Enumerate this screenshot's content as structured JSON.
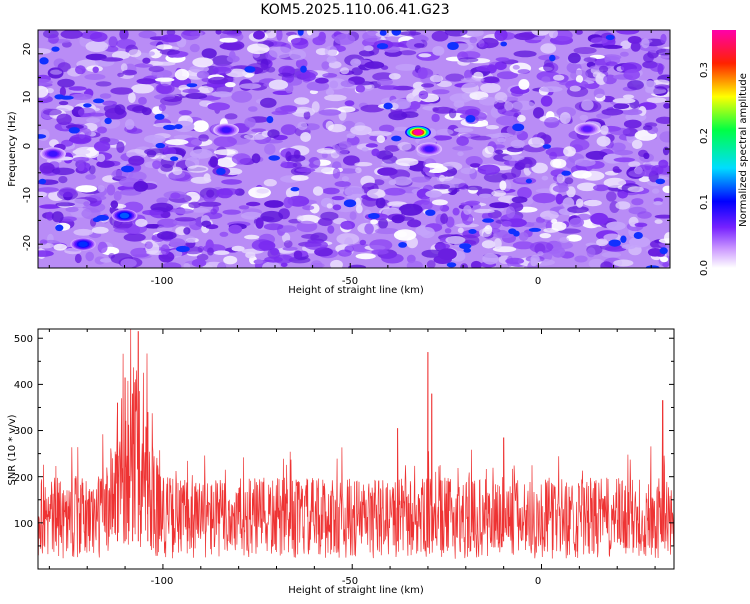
{
  "title": "KOM5.2025.110.06.41.G23",
  "spectrogram": {
    "xlabel": "Height of straight line (km)",
    "ylabel": "Frequency (Hz)",
    "x_ticks": [
      "-100",
      "-50",
      "0"
    ],
    "y_ticks": [
      "20",
      "10",
      "0",
      "-10",
      "-20"
    ]
  },
  "colorbar": {
    "label": "Normalized spectral amplitude",
    "ticks": [
      "0.0",
      "0.1",
      "0.2",
      "0.3"
    ]
  },
  "snr": {
    "xlabel": "Height of straight line (km)",
    "ylabel": "SNR (10 * v/v)",
    "x_ticks": [
      "-100",
      "-50",
      "0"
    ],
    "y_ticks": [
      "100",
      "200",
      "300",
      "400",
      "500"
    ]
  },
  "colors": {
    "snr_line": "#ee3333"
  },
  "chart_data": [
    {
      "type": "heatmap",
      "title": "KOM5.2025.110.06.41.G23",
      "xlabel": "Height of straight line (km)",
      "ylabel": "Frequency (Hz)",
      "xlim": [
        -133,
        35
      ],
      "ylim": [
        -25,
        25
      ],
      "z_label": "Normalized spectral amplitude",
      "z_range": [
        0.0,
        0.36
      ],
      "colormap": "white-violet-blue-cyan-green-yellow-red-magenta",
      "peaks": [
        {
          "x": -32,
          "y": 3.5,
          "z": 0.36
        },
        {
          "x": -110,
          "y": -14,
          "z": 0.12
        },
        {
          "x": -121,
          "y": -20,
          "z": 0.11
        },
        {
          "x": -129,
          "y": -1,
          "z": 0.08
        },
        {
          "x": -83,
          "y": 4,
          "z": 0.08
        },
        {
          "x": -29,
          "y": 0,
          "z": 0.08
        },
        {
          "x": 13,
          "y": 4.2,
          "z": 0.07
        }
      ]
    },
    {
      "type": "line",
      "xlabel": "Height of straight line (km)",
      "ylabel": "SNR (10 * v/v)",
      "xlim": [
        -133,
        35
      ],
      "ylim": [
        0,
        520
      ],
      "baseline": 110,
      "peaks": [
        {
          "x": -106.5,
          "y": 515
        },
        {
          "x": -110,
          "y": 415
        },
        {
          "x": -108,
          "y": 380
        },
        {
          "x": -112,
          "y": 360
        },
        {
          "x": -104,
          "y": 340
        },
        {
          "x": -30,
          "y": 470
        },
        {
          "x": -29,
          "y": 380
        },
        {
          "x": 32,
          "y": 365
        },
        {
          "x": -38,
          "y": 305
        },
        {
          "x": -10,
          "y": 285
        }
      ]
    }
  ]
}
